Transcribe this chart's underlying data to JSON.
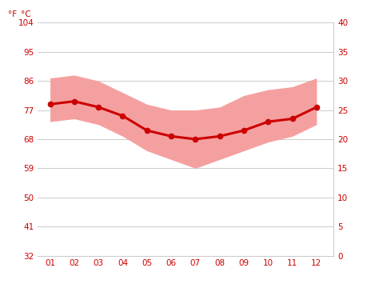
{
  "months": [
    1,
    2,
    3,
    4,
    5,
    6,
    7,
    8,
    9,
    10,
    11,
    12
  ],
  "month_labels": [
    "01",
    "02",
    "03",
    "04",
    "05",
    "06",
    "07",
    "08",
    "09",
    "10",
    "11",
    "12"
  ],
  "avg_temp_c": [
    26.0,
    26.5,
    25.5,
    24.0,
    21.5,
    20.5,
    20.0,
    20.5,
    21.5,
    23.0,
    23.5,
    25.5
  ],
  "max_temp_c": [
    30.5,
    31.0,
    30.0,
    28.0,
    26.0,
    25.0,
    25.0,
    25.5,
    27.5,
    28.5,
    29.0,
    30.5
  ],
  "min_temp_c": [
    23.0,
    23.5,
    22.5,
    20.5,
    18.0,
    16.5,
    15.0,
    16.5,
    18.0,
    19.5,
    20.5,
    22.5
  ],
  "ylim_c": [
    0,
    40
  ],
  "yticks_c": [
    0,
    5,
    10,
    15,
    20,
    25,
    30,
    35,
    40
  ],
  "ytick_labels_f": [
    "32",
    "41",
    "50",
    "59",
    "68",
    "77",
    "86",
    "95",
    "104"
  ],
  "ytick_labels_c": [
    "0",
    "5",
    "10",
    "15",
    "20",
    "25",
    "30",
    "35",
    "40"
  ],
  "line_color": "#cc0000",
  "band_color": "#f5a0a0",
  "bg_color": "#ffffff",
  "grid_color": "#cccccc",
  "tick_label_color": "#cc0000",
  "line_width": 2.2,
  "marker": "o",
  "marker_size": 4.5,
  "xlim": [
    0.5,
    12.7
  ]
}
